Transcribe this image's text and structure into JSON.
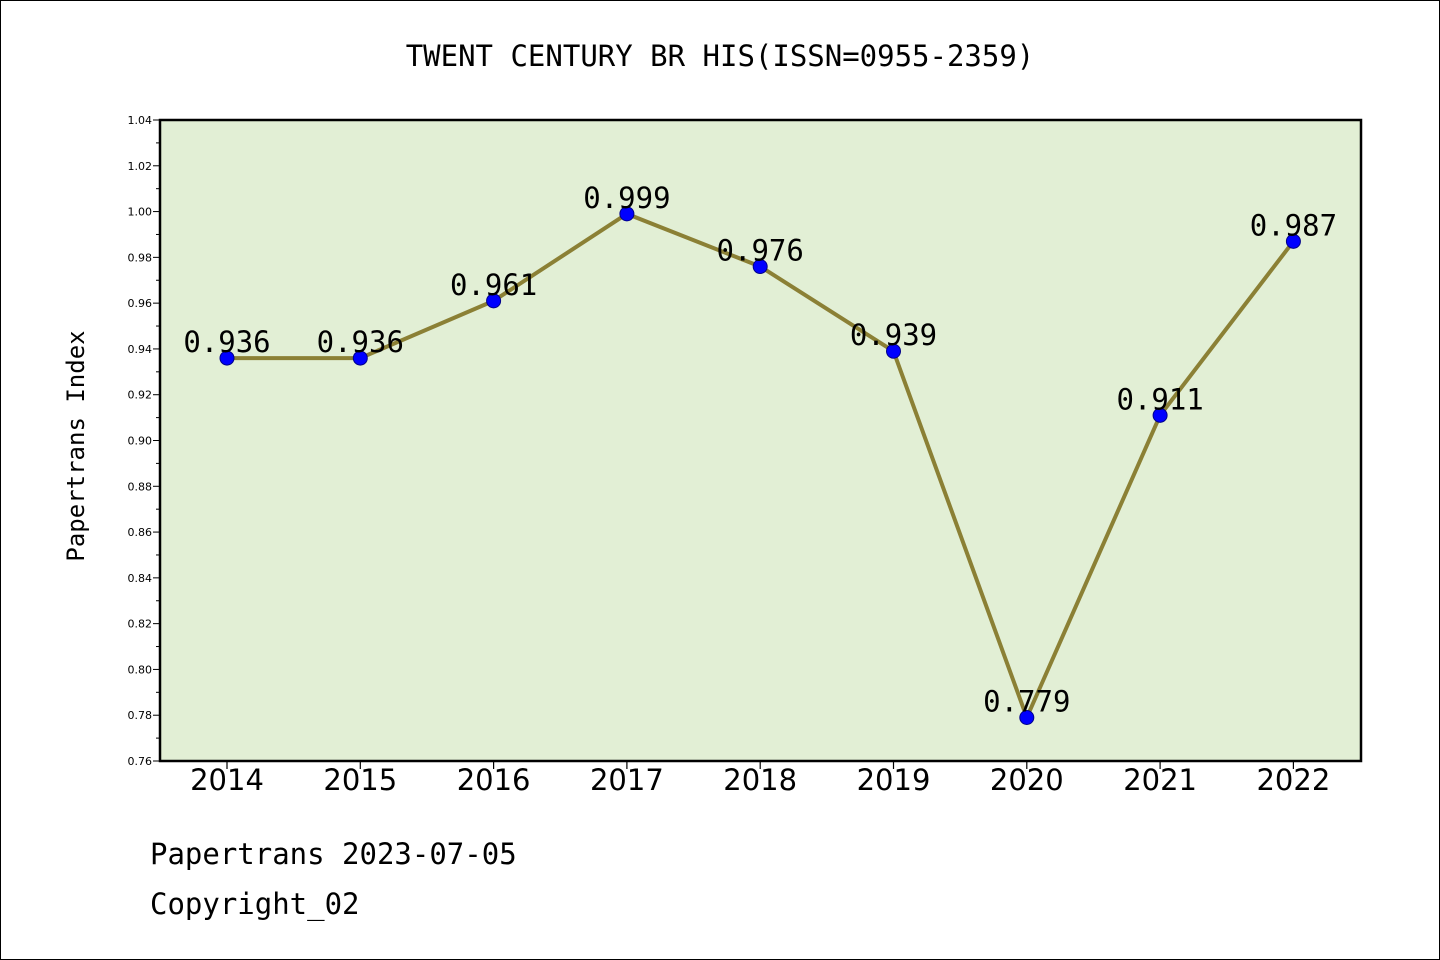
{
  "chart_data": {
    "type": "line",
    "title": "TWENT CENTURY BR HIS(ISSN=0955-2359)",
    "xlabel": "",
    "ylabel": "Papertrans Index",
    "categories": [
      "2014",
      "2015",
      "2016",
      "2017",
      "2018",
      "2019",
      "2020",
      "2021",
      "2022"
    ],
    "series": [
      {
        "values": [
          0.936,
          0.936,
          0.961,
          0.999,
          0.976,
          0.939,
          0.779,
          0.911,
          0.987
        ],
        "data_labels": [
          "0.936",
          "0.936",
          "0.961",
          "0.999",
          "0.976",
          "0.939",
          "0.779",
          "0.911",
          "0.987"
        ]
      }
    ],
    "ylim": [
      0.76,
      1.04
    ],
    "yticks": [
      "0.76",
      "0.78",
      "0.80",
      "0.82",
      "0.84",
      "0.86",
      "0.88",
      "0.90",
      "0.92",
      "0.94",
      "0.96",
      "0.98",
      "1.00",
      "1.02",
      "1.04"
    ],
    "grid": false,
    "legend": "none"
  },
  "footer": {
    "line1": "Papertrans 2023-07-05",
    "line2": "Copyright_02"
  },
  "colors": {
    "plot_background": "#e2efd5",
    "line": "#8b8035",
    "marker": "#0000ff",
    "axis": "#000000"
  }
}
